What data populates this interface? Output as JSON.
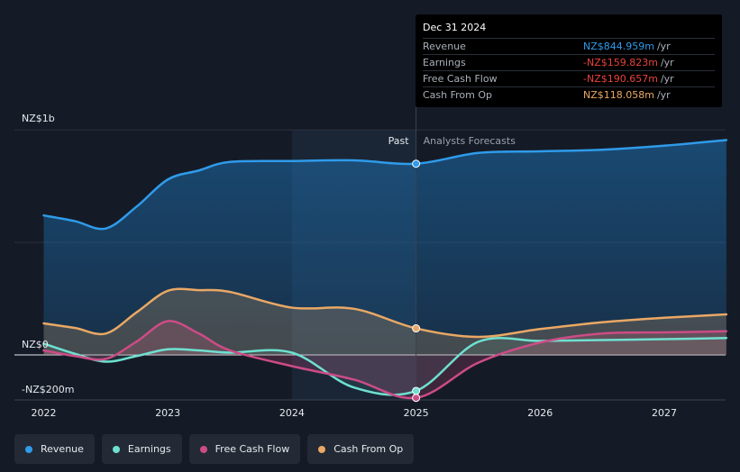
{
  "tooltip": {
    "date": "Dec 31 2024",
    "rows": [
      {
        "name": "Revenue",
        "value": "NZ$844.959m",
        "unit": "/yr",
        "color": "#2f9bea"
      },
      {
        "name": "Earnings",
        "value": "-NZ$159.823m",
        "unit": "/yr",
        "color": "#e8433c"
      },
      {
        "name": "Free Cash Flow",
        "value": "-NZ$190.657m",
        "unit": "/yr",
        "color": "#e8433c"
      },
      {
        "name": "Cash From Op",
        "value": "NZ$118.058m",
        "unit": "/yr",
        "color": "#e9a865"
      }
    ]
  },
  "legend": [
    {
      "label": "Revenue",
      "color": "#2f9bea"
    },
    {
      "label": "Earnings",
      "color": "#6fe0d0"
    },
    {
      "label": "Free Cash Flow",
      "color": "#cc4c86"
    },
    {
      "label": "Cash From Op",
      "color": "#e9a865"
    }
  ],
  "chart_data": {
    "type": "line",
    "y_tick_labels": [
      "NZ$1b",
      "NZ$0",
      "-NZ$200m"
    ],
    "ylim": [
      -200,
      1000
    ],
    "xlim": [
      2021.9,
      2027.5
    ],
    "x_tick_labels": [
      "2022",
      "2023",
      "2024",
      "2025",
      "2026",
      "2027"
    ],
    "x_ticks": [
      2022,
      2023,
      2024,
      2025,
      2026,
      2027
    ],
    "past_label": "Past",
    "forecast_label": "Analysts Forecasts",
    "divider_x": 2025,
    "shade_start_x": 2024,
    "series": [
      {
        "name": "Revenue",
        "color": "#2f9bea",
        "points": [
          [
            2022,
            620
          ],
          [
            2022.25,
            595
          ],
          [
            2022.5,
            562
          ],
          [
            2022.75,
            660
          ],
          [
            2023,
            780
          ],
          [
            2023.25,
            820
          ],
          [
            2023.5,
            858
          ],
          [
            2024,
            862
          ],
          [
            2024.5,
            865
          ],
          [
            2025,
            850
          ],
          [
            2025.5,
            898
          ],
          [
            2026,
            905
          ],
          [
            2026.5,
            912
          ],
          [
            2027,
            930
          ],
          [
            2027.5,
            955
          ]
        ]
      },
      {
        "name": "Earnings",
        "color": "#6fe0d0",
        "points": [
          [
            2022,
            50
          ],
          [
            2022.25,
            5
          ],
          [
            2022.5,
            -30
          ],
          [
            2022.75,
            -5
          ],
          [
            2023,
            25
          ],
          [
            2023.25,
            20
          ],
          [
            2023.5,
            10
          ],
          [
            2024,
            10
          ],
          [
            2024.5,
            -145
          ],
          [
            2025,
            -160
          ],
          [
            2025.5,
            58
          ],
          [
            2026,
            62
          ],
          [
            2026.5,
            66
          ],
          [
            2027,
            70
          ],
          [
            2027.5,
            75
          ]
        ]
      },
      {
        "name": "Free Cash Flow",
        "color": "#cc4c86",
        "points": [
          [
            2022,
            20
          ],
          [
            2022.25,
            -5
          ],
          [
            2022.5,
            -18
          ],
          [
            2022.75,
            60
          ],
          [
            2023,
            150
          ],
          [
            2023.25,
            95
          ],
          [
            2023.5,
            20
          ],
          [
            2024,
            -50
          ],
          [
            2024.5,
            -110
          ],
          [
            2025,
            -191
          ],
          [
            2025.5,
            -35
          ],
          [
            2026,
            55
          ],
          [
            2026.5,
            95
          ],
          [
            2027,
            100
          ],
          [
            2027.5,
            105
          ]
        ]
      },
      {
        "name": "Cash From Op",
        "color": "#e9a865",
        "points": [
          [
            2022,
            140
          ],
          [
            2022.25,
            120
          ],
          [
            2022.5,
            95
          ],
          [
            2022.75,
            190
          ],
          [
            2023,
            285
          ],
          [
            2023.25,
            288
          ],
          [
            2023.5,
            280
          ],
          [
            2024,
            210
          ],
          [
            2024.5,
            205
          ],
          [
            2025,
            118
          ],
          [
            2025.5,
            80
          ],
          [
            2026,
            115
          ],
          [
            2026.5,
            145
          ],
          [
            2027,
            165
          ],
          [
            2027.5,
            180
          ]
        ]
      }
    ]
  }
}
